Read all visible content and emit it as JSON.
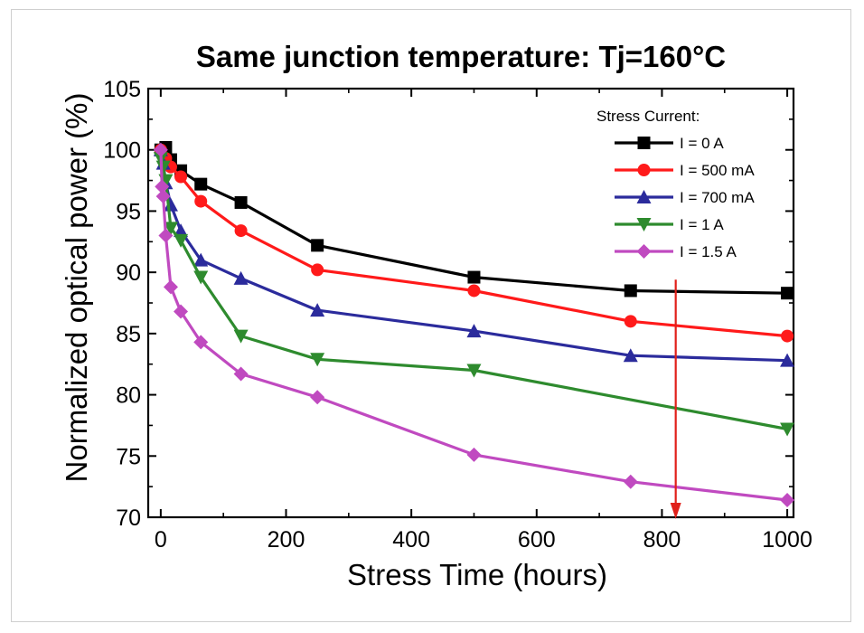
{
  "chart_data": {
    "type": "line",
    "title": "Same junction temperature: Tj=160°C",
    "xlabel": "Stress Time (hours)",
    "ylabel": "Normalized optical power (%)",
    "xlim": [
      -20,
      1010
    ],
    "ylim": [
      70,
      105
    ],
    "xticks": [
      0,
      200,
      400,
      600,
      800,
      1000
    ],
    "yticks": [
      70,
      75,
      80,
      85,
      90,
      95,
      100,
      105
    ],
    "legend_title": "Stress Current:",
    "legend_position": "top-right",
    "grid": false,
    "series": [
      {
        "name": "I = 0 A",
        "color": "#000000",
        "marker": "square",
        "x": [
          0,
          8,
          16,
          32,
          64,
          128,
          250,
          500,
          750,
          1000
        ],
        "y": [
          100,
          100.2,
          99.2,
          98.3,
          97.2,
          95.7,
          92.2,
          89.6,
          88.5,
          88.3
        ]
      },
      {
        "name": "I = 500 mA",
        "color": "#ff1a1a",
        "marker": "circle",
        "x": [
          0,
          8,
          16,
          32,
          64,
          128,
          250,
          500,
          750,
          1000
        ],
        "y": [
          100,
          99.3,
          98.6,
          97.8,
          95.8,
          93.4,
          90.2,
          88.5,
          86.0,
          84.8
        ]
      },
      {
        "name": "I = 700 mA",
        "color": "#2b2b9c",
        "marker": "triangle-up",
        "x": [
          0,
          4,
          8,
          16,
          32,
          64,
          128,
          250,
          500,
          750,
          1000
        ],
        "y": [
          100,
          98.9,
          97.3,
          95.5,
          93.4,
          91.0,
          89.5,
          86.9,
          85.2,
          83.2,
          82.8
        ]
      },
      {
        "name": "I = 1 A",
        "color": "#2e8b2e",
        "marker": "triangle-down",
        "x": [
          0,
          4,
          8,
          16,
          32,
          64,
          128,
          250,
          500,
          1000
        ],
        "y": [
          99.3,
          98.6,
          97.5,
          93.6,
          92.6,
          89.6,
          84.8,
          82.9,
          82.0,
          77.2
        ]
      },
      {
        "name": "I = 1.5 A",
        "color": "#c04ac0",
        "marker": "diamond",
        "x": [
          0,
          2,
          4,
          8,
          16,
          32,
          64,
          128,
          250,
          500,
          750,
          1000
        ],
        "y": [
          100,
          97.0,
          96.2,
          93.0,
          88.8,
          86.8,
          84.3,
          81.7,
          79.8,
          75.1,
          72.9,
          71.4
        ]
      }
    ],
    "annotations": [
      {
        "type": "arrow",
        "color": "#e0201a",
        "x": 822,
        "y_start": 89.4,
        "y_end": 70.0
      }
    ]
  }
}
